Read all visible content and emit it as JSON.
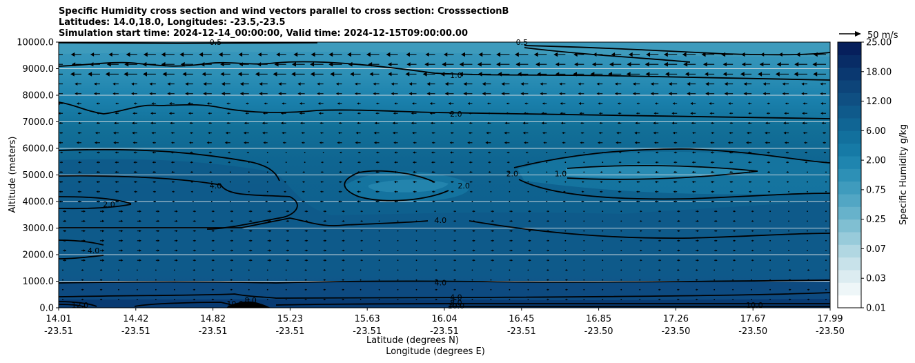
{
  "chart_data": {
    "type": "heatmap",
    "title_lines": [
      "Specific Humidity cross section and wind vectors parallel to cross section: CrosssectionB",
      "Latitudes: 14.0,18.0, Longitudes: -23.5,-23.5",
      "Simulation start time: 2024-12-14_00:00:00, Valid time: 2024-12-15T09:00:00.00"
    ],
    "ylabel": "Altitude (meters)",
    "xlabel_lat": "Latitude (degrees N)",
    "xlabel_lon": "Longitude (degrees E)",
    "ylim": [
      0,
      10000
    ],
    "yticks": [
      "0.0",
      "1000.0",
      "2000.0",
      "3000.0",
      "4000.0",
      "5000.0",
      "6000.0",
      "7000.0",
      "8000.0",
      "9000.0",
      "10000.0"
    ],
    "xticks": [
      {
        "lat": "14.01",
        "lon": "-23.51"
      },
      {
        "lat": "14.42",
        "lon": "-23.51"
      },
      {
        "lat": "14.82",
        "lon": "-23.51"
      },
      {
        "lat": "15.23",
        "lon": "-23.51"
      },
      {
        "lat": "15.63",
        "lon": "-23.51"
      },
      {
        "lat": "16.04",
        "lon": "-23.51"
      },
      {
        "lat": "16.45",
        "lon": "-23.51"
      },
      {
        "lat": "16.85",
        "lon": "-23.50"
      },
      {
        "lat": "17.26",
        "lon": "-23.50"
      },
      {
        "lat": "17.67",
        "lon": "-23.50"
      },
      {
        "lat": "17.99",
        "lon": "-23.50"
      }
    ],
    "grid": "horizontal",
    "colorbar": {
      "label": "Specific Humidity g/kg",
      "ticks": [
        "0.01",
        "0.03",
        "0.07",
        "0.25",
        "0.75",
        "2.00",
        "6.00",
        "12.00",
        "18.00",
        "25.00"
      ],
      "colors": [
        "#ffffff",
        "#eef6f8",
        "#dcecf1",
        "#c8e2ea",
        "#b1d7e2",
        "#98cbda",
        "#80bfd2",
        "#67b2cb",
        "#52a6c4",
        "#3f9bbd",
        "#2d90b6",
        "#1f85af",
        "#167aa6",
        "#12709d",
        "#106594",
        "#0f5a8b",
        "#0f4f82",
        "#0d4479",
        "#0a3870",
        "#082c66",
        "#061f5c"
      ]
    },
    "contour_labels": [
      {
        "text": "0.5",
        "x": 14.82,
        "y": 10000
      },
      {
        "text": "0.5",
        "x": 16.4,
        "y": 10000
      },
      {
        "text": "1.0",
        "x": 16.06,
        "y": 8750
      },
      {
        "text": "2.0",
        "x": 16.06,
        "y": 7300
      },
      {
        "text": "2.0",
        "x": 14.27,
        "y": 3900
      },
      {
        "text": "4.0",
        "x": 14.82,
        "y": 4600
      },
      {
        "text": "2.0",
        "x": 16.1,
        "y": 4600
      },
      {
        "text": "2.0",
        "x": 16.35,
        "y": 5050
      },
      {
        "text": "1.0",
        "x": 16.6,
        "y": 5050
      },
      {
        "text": "4.0",
        "x": 15.98,
        "y": 3300
      },
      {
        "text": "4.0",
        "x": 14.19,
        "y": 2150
      },
      {
        "text": "4.0",
        "x": 15.98,
        "y": 950
      },
      {
        "text": "4.0",
        "x": 16.06,
        "y": 400
      },
      {
        "text": "8.0",
        "x": 16.06,
        "y": 200
      },
      {
        "text": "10.0",
        "x": 16.06,
        "y": 80
      },
      {
        "text": "12.0",
        "x": 14.12,
        "y": 100
      },
      {
        "text": "8.0",
        "x": 15.0,
        "y": 280
      },
      {
        "text": "10.0",
        "x": 14.92,
        "y": 150
      },
      {
        "text": "10.0",
        "x": 17.6,
        "y": 100
      }
    ],
    "wind_reference": {
      "label": "50 m/s",
      "value": 50
    }
  }
}
